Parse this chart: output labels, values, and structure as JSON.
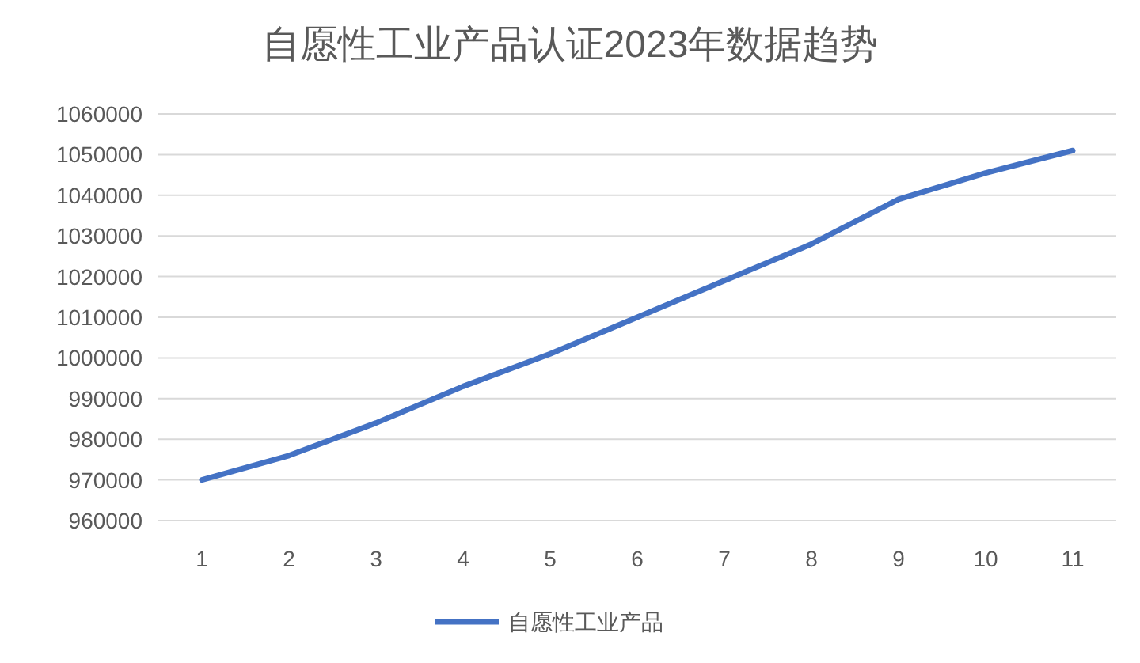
{
  "chart_data": {
    "type": "line",
    "title": "自愿性工业产品认证2023年数据趋势",
    "categories": [
      "1",
      "2",
      "3",
      "4",
      "5",
      "6",
      "7",
      "8",
      "9",
      "10",
      "11"
    ],
    "series": [
      {
        "name": "自愿性工业产品",
        "color": "#4472c4",
        "values": [
          970000,
          976000,
          984000,
          993000,
          1001000,
          1010000,
          1019000,
          1028000,
          1039000,
          1045500,
          1051000
        ]
      }
    ],
    "ylim": [
      960000,
      1060000
    ],
    "yticks": [
      960000,
      970000,
      980000,
      990000,
      1000000,
      1010000,
      1020000,
      1030000,
      1040000,
      1050000,
      1060000
    ],
    "grid": "y",
    "legend": "bottom",
    "marker": "none",
    "line_style": "solid"
  }
}
